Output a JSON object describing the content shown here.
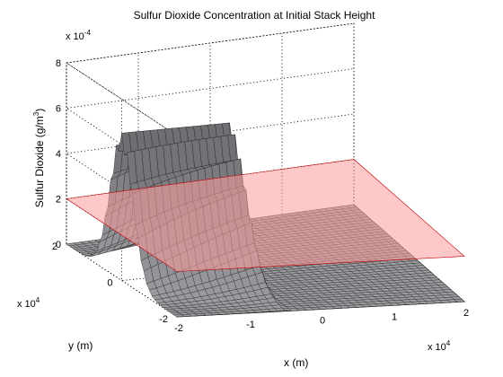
{
  "chart_data": {
    "type": "surface",
    "title": "Sulfur Dioxide Concentration at Initial Stack Height",
    "xlabel": "x (m)",
    "ylabel": "y (m)",
    "zlabel_pre": "Sulfur Dioxide (g/m",
    "zlabel_sup": "3",
    "zlabel_post": ")",
    "x_multiplier_base": "x 10",
    "x_multiplier_exp": "4",
    "y_multiplier_base": "x 10",
    "y_multiplier_exp": "4",
    "z_multiplier_base": "x 10",
    "z_multiplier_exp": "-4",
    "x_ticks": [
      -2,
      -1,
      0,
      1,
      2
    ],
    "y_ticks": [
      -2,
      0,
      2
    ],
    "z_ticks": [
      0,
      2,
      4,
      6,
      8
    ],
    "xlim": [
      -20000,
      20000
    ],
    "ylim": [
      -20000,
      20000
    ],
    "zlim": [
      0,
      0.0008
    ],
    "z_scale": 0.0001,
    "grid": true,
    "grid_resolution": 40,
    "peak_concentration": 0.00065,
    "plume_edge_x": -5000,
    "plane_level": 0.0002,
    "surface_color": "#8e8e8e",
    "plane_color": "#ff9a9a",
    "plane_edge_color": "#c00000"
  }
}
